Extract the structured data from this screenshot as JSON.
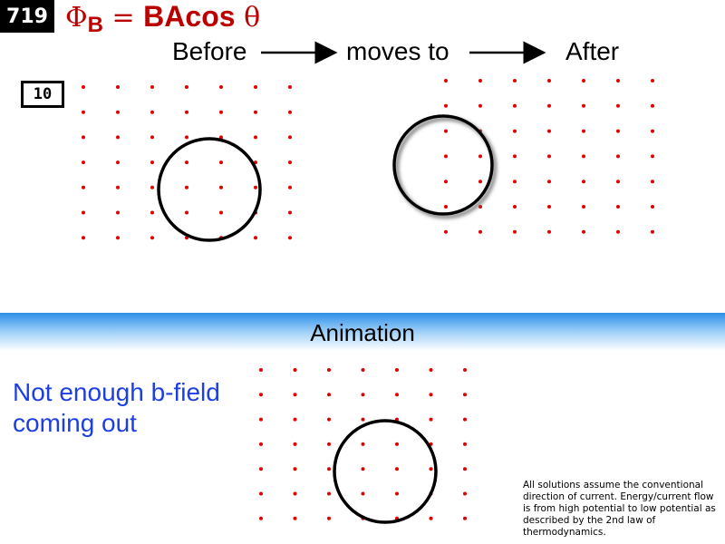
{
  "slide_number": "719",
  "formula": {
    "phi": "Φ",
    "sub": "B",
    "eq": " = ",
    "ba": "BA",
    "cos": "cos",
    "theta": " θ"
  },
  "header": {
    "before": "Before",
    "moves_to": "moves to",
    "after": "After"
  },
  "problem_number": "10",
  "banner": {
    "label": "Animation"
  },
  "note": {
    "line1": "Not enough b-field",
    "line2": "coming out"
  },
  "disclaimer": "All solutions assume the conventional direction of current. Energy/current flow is from high potential to low potential as described by the 2nd law of thermodynamics.",
  "colors": {
    "field_dot": "#e00000",
    "accent": "#b00000",
    "note": "#1e3fe0",
    "banner": "#2b8fe8"
  },
  "field": {
    "direction": "out of page",
    "grid": "7x7"
  }
}
